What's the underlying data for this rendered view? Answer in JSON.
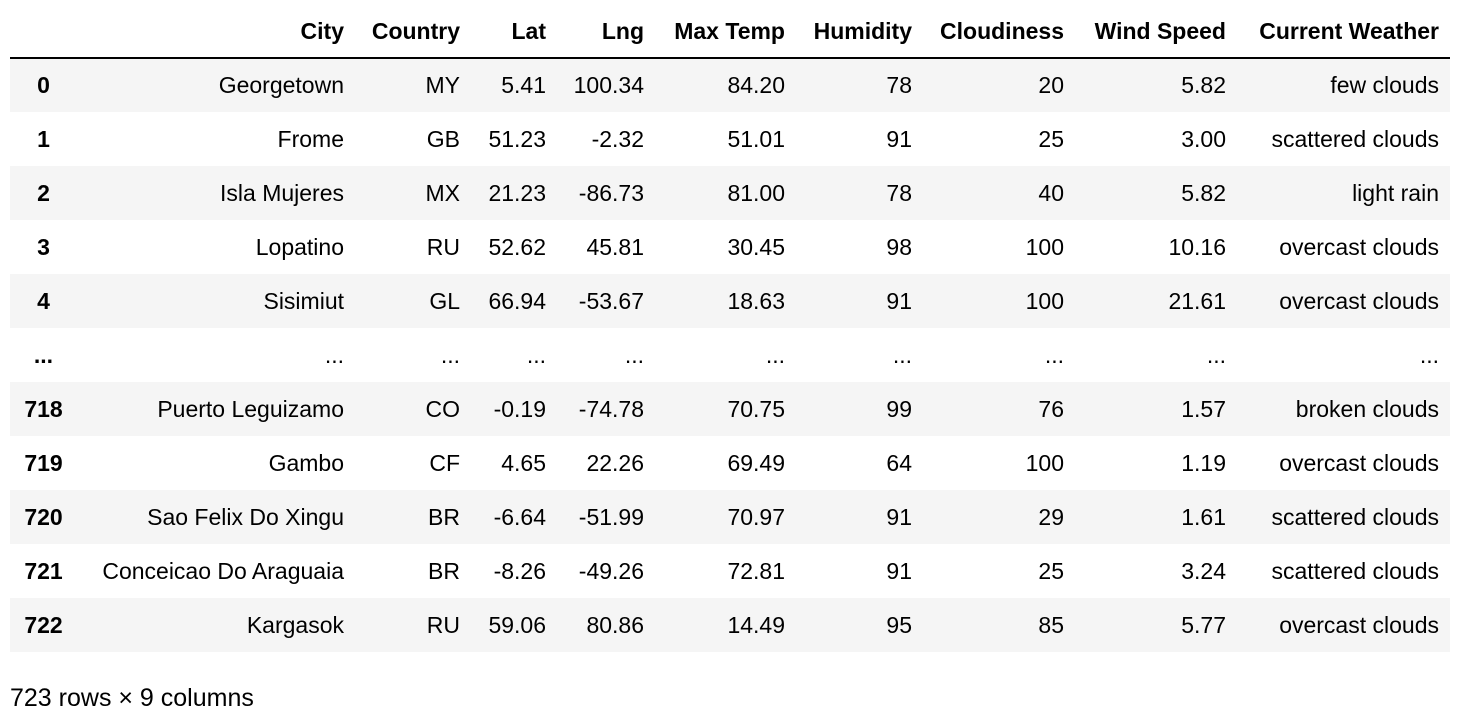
{
  "table": {
    "columns": [
      "City",
      "Country",
      "Lat",
      "Lng",
      "Max Temp",
      "Humidity",
      "Cloudiness",
      "Wind Speed",
      "Current Weather"
    ],
    "rows": [
      {
        "index": "0",
        "cells": [
          "Georgetown",
          "MY",
          "5.41",
          "100.34",
          "84.20",
          "78",
          "20",
          "5.82",
          "few clouds"
        ]
      },
      {
        "index": "1",
        "cells": [
          "Frome",
          "GB",
          "51.23",
          "-2.32",
          "51.01",
          "91",
          "25",
          "3.00",
          "scattered clouds"
        ]
      },
      {
        "index": "2",
        "cells": [
          "Isla Mujeres",
          "MX",
          "21.23",
          "-86.73",
          "81.00",
          "78",
          "40",
          "5.82",
          "light rain"
        ]
      },
      {
        "index": "3",
        "cells": [
          "Lopatino",
          "RU",
          "52.62",
          "45.81",
          "30.45",
          "98",
          "100",
          "10.16",
          "overcast clouds"
        ]
      },
      {
        "index": "4",
        "cells": [
          "Sisimiut",
          "GL",
          "66.94",
          "-53.67",
          "18.63",
          "91",
          "100",
          "21.61",
          "overcast clouds"
        ]
      },
      {
        "index": "...",
        "cells": [
          "...",
          "...",
          "...",
          "...",
          "...",
          "...",
          "...",
          "...",
          "..."
        ]
      },
      {
        "index": "718",
        "cells": [
          "Puerto Leguizamo",
          "CO",
          "-0.19",
          "-74.78",
          "70.75",
          "99",
          "76",
          "1.57",
          "broken clouds"
        ]
      },
      {
        "index": "719",
        "cells": [
          "Gambo",
          "CF",
          "4.65",
          "22.26",
          "69.49",
          "64",
          "100",
          "1.19",
          "overcast clouds"
        ]
      },
      {
        "index": "720",
        "cells": [
          "Sao Felix Do Xingu",
          "BR",
          "-6.64",
          "-51.99",
          "70.97",
          "91",
          "29",
          "1.61",
          "scattered clouds"
        ]
      },
      {
        "index": "721",
        "cells": [
          "Conceicao Do Araguaia",
          "BR",
          "-8.26",
          "-49.26",
          "72.81",
          "91",
          "25",
          "3.24",
          "scattered clouds"
        ]
      },
      {
        "index": "722",
        "cells": [
          "Kargasok",
          "RU",
          "59.06",
          "80.86",
          "14.49",
          "95",
          "85",
          "5.77",
          "overcast clouds"
        ]
      }
    ]
  },
  "footer": {
    "summary": "723 rows × 9 columns"
  },
  "colors": {
    "stripe": "#f5f5f5",
    "background": "#ffffff",
    "text": "#000000"
  }
}
